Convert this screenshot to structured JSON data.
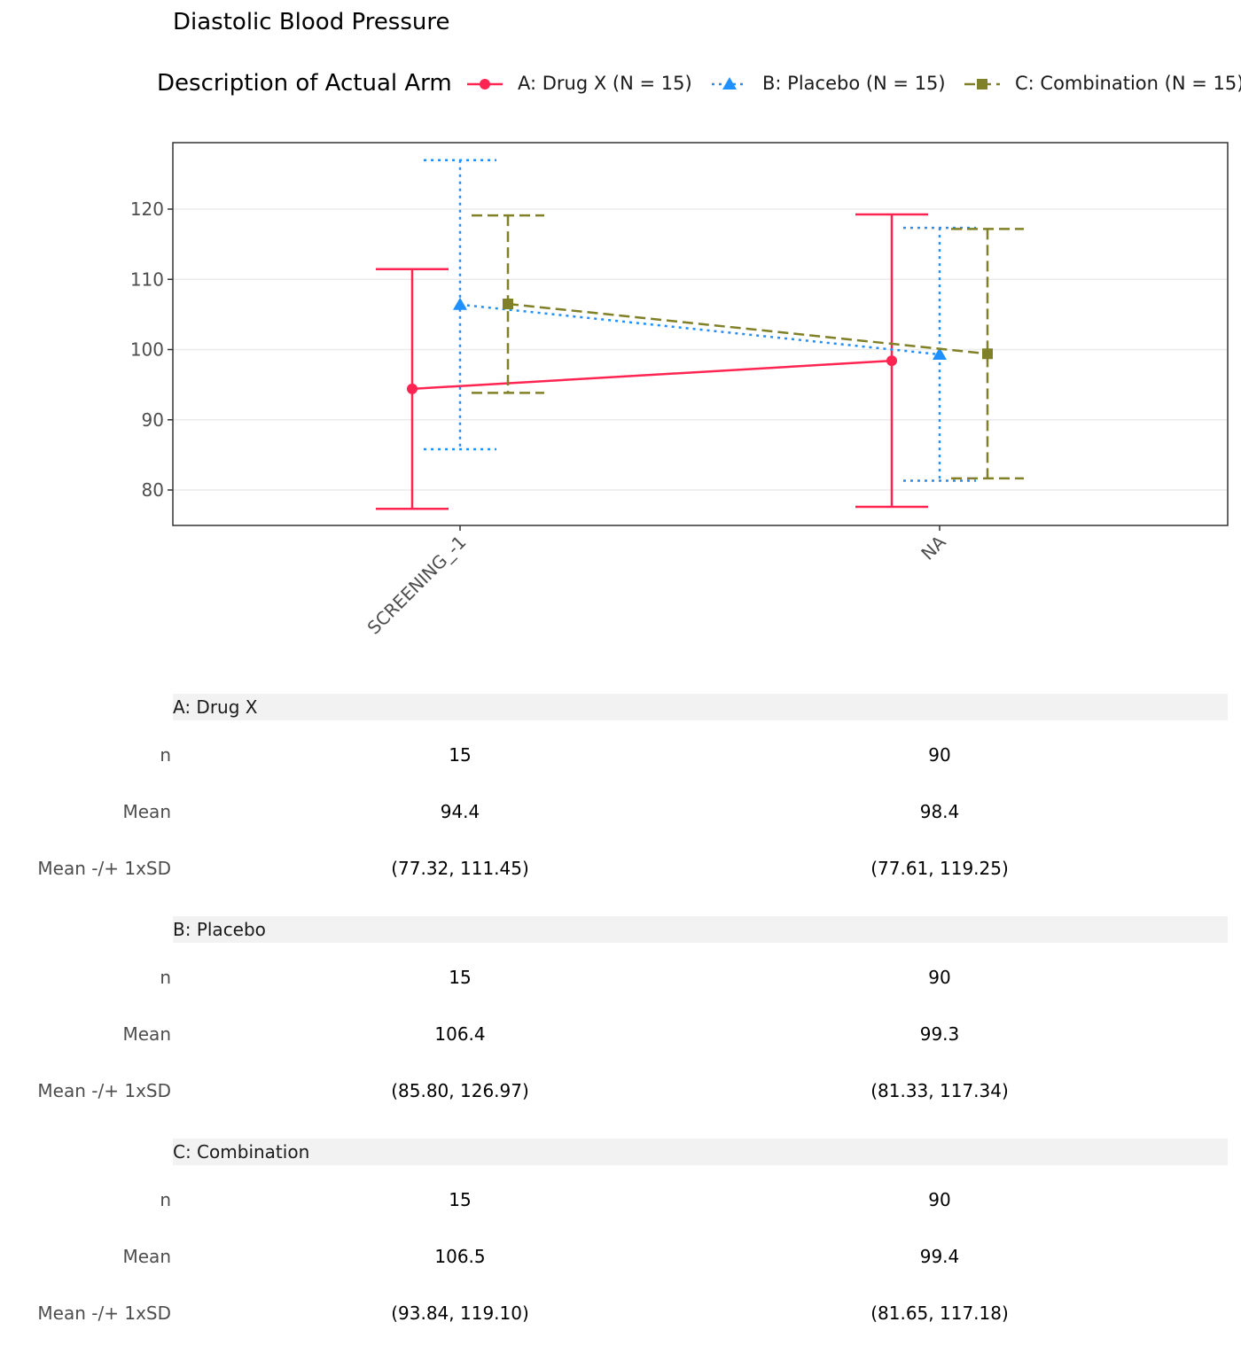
{
  "chart_data": {
    "type": "line",
    "title": "Diastolic Blood Pressure",
    "legend_title": "Description of Actual Arm",
    "legend_position": "top",
    "xlabel": "",
    "ylabel": "",
    "categories": [
      "SCREENING_-1",
      "NA"
    ],
    "ylim": [
      74.95,
      129.46
    ],
    "yticks": [
      80,
      90,
      100,
      110,
      120
    ],
    "grid": true,
    "series": [
      {
        "name": "A: Drug X",
        "legend_label": "A: Drug X (N = 15)",
        "color": "#ff2451",
        "marker": "circle",
        "linestyle": "solid",
        "mean": [
          94.4,
          98.4
        ],
        "lower": [
          77.32,
          77.61
        ],
        "upper": [
          111.45,
          119.25
        ]
      },
      {
        "name": "B: Placebo",
        "legend_label": "B: Placebo (N = 15)",
        "color": "#1e90ff",
        "marker": "triangle",
        "linestyle": "dotted",
        "mean": [
          106.4,
          99.3
        ],
        "lower": [
          85.8,
          81.33
        ],
        "upper": [
          126.97,
          117.34
        ]
      },
      {
        "name": "C: Combination",
        "legend_label": "C: Combination (N = 15)",
        "color": "#808028",
        "marker": "square",
        "linestyle": "dashed",
        "mean": [
          106.5,
          99.4
        ],
        "lower": [
          93.84,
          81.65
        ],
        "upper": [
          119.1,
          117.18
        ]
      }
    ]
  },
  "table": {
    "row_labels": [
      "n",
      "Mean",
      "Mean -/+ 1xSD"
    ],
    "groups": [
      {
        "name": "A: Drug X",
        "rows": [
          [
            "15",
            "90"
          ],
          [
            "94.4",
            "98.4"
          ],
          [
            "(77.32, 111.45)",
            "(77.61, 119.25)"
          ]
        ]
      },
      {
        "name": "B: Placebo",
        "rows": [
          [
            "15",
            "90"
          ],
          [
            "106.4",
            "99.3"
          ],
          [
            "(85.80, 126.97)",
            "(81.33, 117.34)"
          ]
        ]
      },
      {
        "name": "C: Combination",
        "rows": [
          [
            "15",
            "90"
          ],
          [
            "106.5",
            "99.4"
          ],
          [
            "(93.84, 119.10)",
            "(81.65, 117.18)"
          ]
        ]
      }
    ]
  }
}
